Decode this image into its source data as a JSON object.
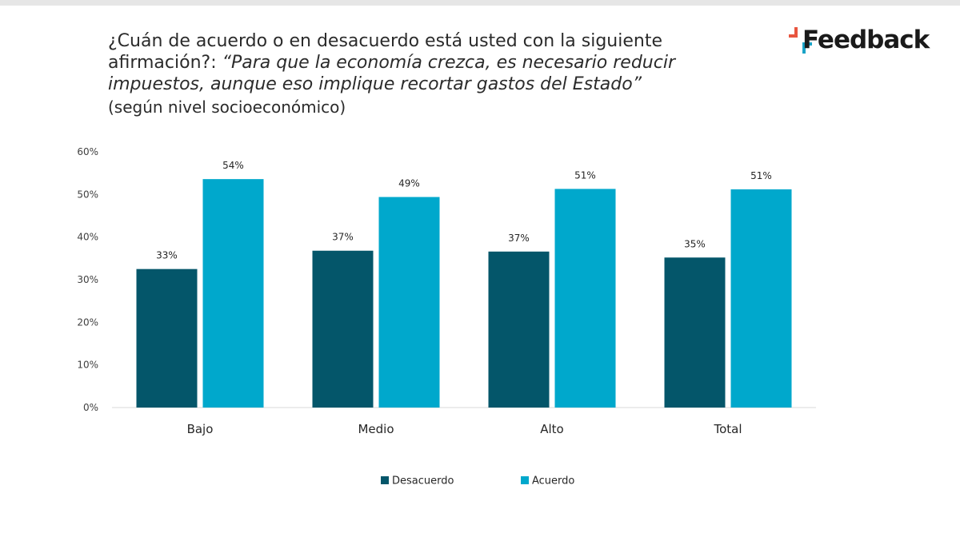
{
  "header": {
    "title_lead": "¿Cuán de acuerdo o en desacuerdo está usted con la siguiente afirmación?: ",
    "title_quote": "“Para que la economía crezca, es necesario reducir impuestos, aunque eso implique recortar gastos del Estado”",
    "subtitle": "(según nivel socioeconómico)",
    "logo_text": "Feedback",
    "logo_colors": {
      "red": "#e8553f",
      "teal": "#1aa3c7"
    }
  },
  "chart_data": {
    "type": "bar",
    "title": "¿Cuán de acuerdo o en desacuerdo está usted con la siguiente afirmación?: “Para que la economía crezca, es necesario reducir impuestos, aunque eso implique recortar gastos del Estado” (según nivel socioeconómico)",
    "xlabel": "",
    "ylabel": "",
    "categories": [
      "Bajo",
      "Medio",
      "Alto",
      "Total"
    ],
    "series": [
      {
        "name": "Desacuerdo",
        "color": "#04566a",
        "values": [
          32.5,
          36.8,
          36.6,
          35.2
        ],
        "labels": [
          "33%",
          "37%",
          "37%",
          "35%"
        ]
      },
      {
        "name": "Acuerdo",
        "color": "#00a8cc",
        "values": [
          53.6,
          49.4,
          51.3,
          51.2
        ],
        "labels": [
          "54%",
          "49%",
          "51%",
          "51%"
        ]
      }
    ],
    "ylim": [
      0,
      60
    ],
    "yticks": [
      0,
      10,
      20,
      30,
      40,
      50,
      60
    ],
    "ytick_labels": [
      "0%",
      "10%",
      "20%",
      "30%",
      "40%",
      "50%",
      "60%"
    ],
    "grid": false,
    "legend_position": "bottom"
  }
}
